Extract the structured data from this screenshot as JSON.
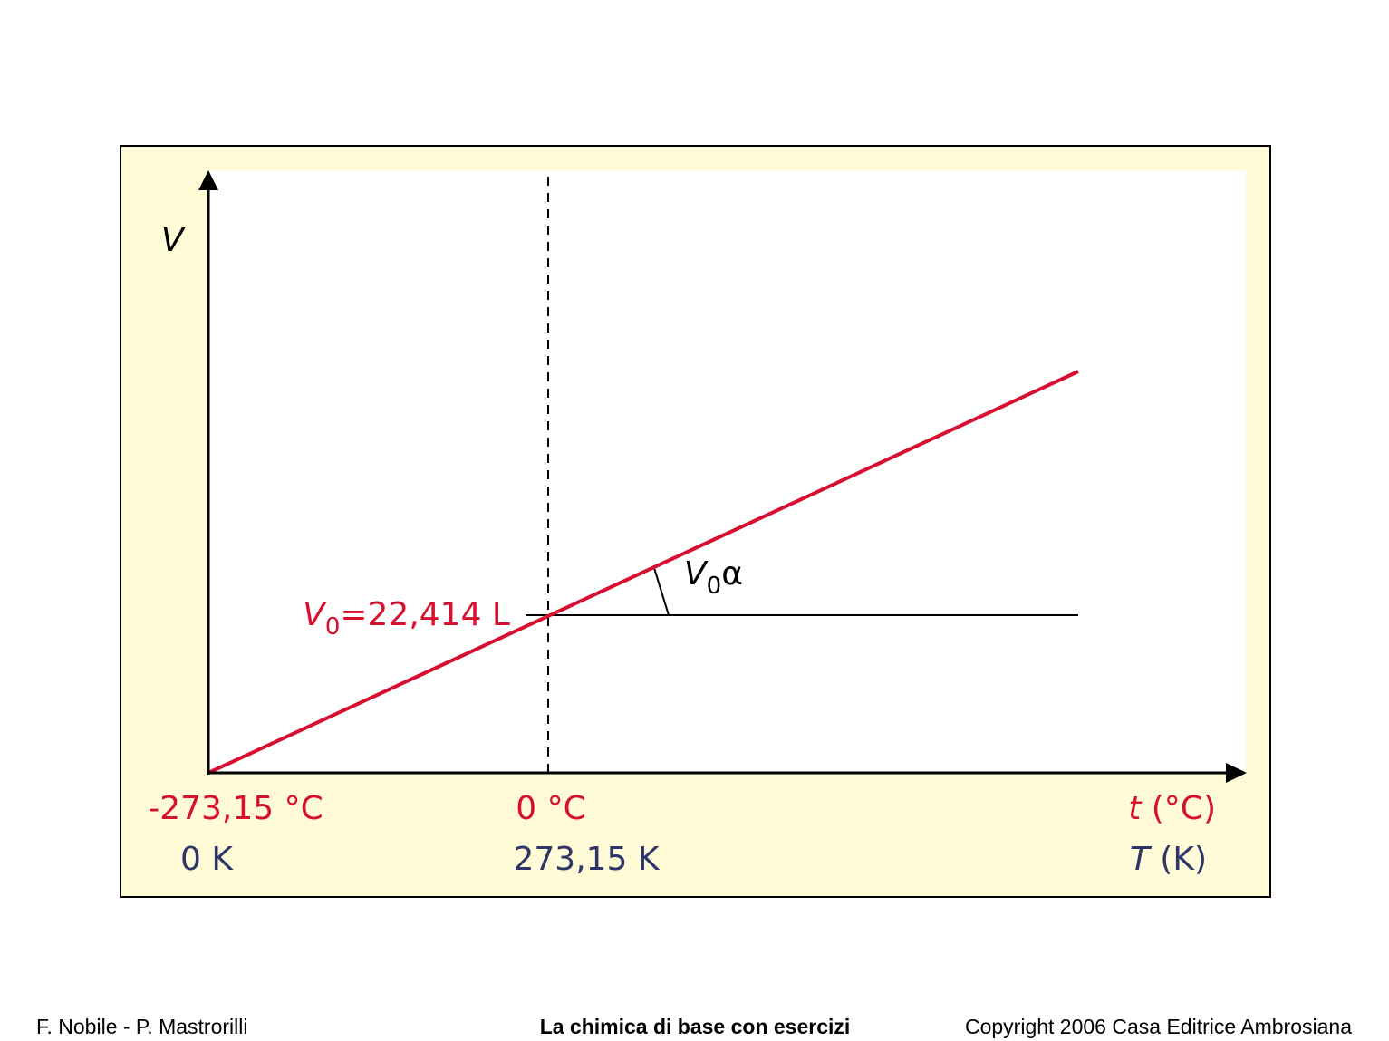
{
  "diagram": {
    "y_axis_label": "V",
    "x_axis_label_celsius": {
      "symbol": "t",
      "unit": "(°C)"
    },
    "x_axis_label_kelvin": {
      "symbol": "T",
      "unit": "(K)"
    },
    "v0_label": {
      "symbol": "V",
      "subscript": "0",
      "text": "=22,414 L"
    },
    "slope_label": {
      "symbol": "V",
      "subscript": "0",
      "text": "α"
    },
    "points": [
      {
        "celsius": "-273,15 °C",
        "kelvin": "0 K"
      },
      {
        "celsius": "0 °C",
        "kelvin": "273,15 K"
      }
    ]
  },
  "footer": {
    "authors": "F. Nobile - P. Mastrorilli",
    "book": "La chimica di base con esercizi",
    "copyright": "Copyright 2006 Casa Editrice Ambrosiana"
  }
}
